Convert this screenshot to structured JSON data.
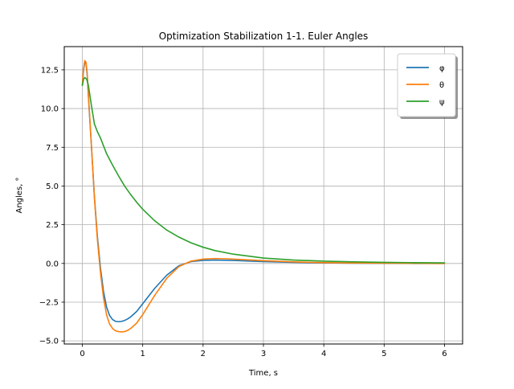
{
  "chart_data": {
    "type": "line",
    "title": "Optimization Stabilization 1-1. Euler Angles",
    "xlabel": "Time, s",
    "ylabel": "Angles, °",
    "xlim": [
      -0.3,
      6.3
    ],
    "ylim": [
      -5.2,
      14.0
    ],
    "xticks": [
      0,
      1,
      2,
      3,
      4,
      5,
      6
    ],
    "xtick_labels": [
      "0",
      "1",
      "2",
      "3",
      "4",
      "5",
      "6"
    ],
    "yticks": [
      -5.0,
      -2.5,
      0.0,
      2.5,
      5.0,
      7.5,
      10.0,
      12.5
    ],
    "ytick_labels": [
      "−5.0",
      "−2.5",
      "0.0",
      "2.5",
      "5.0",
      "7.5",
      "10.0",
      "12.5"
    ],
    "grid": true,
    "legend_position": "top-right",
    "series": [
      {
        "name": "φ",
        "color": "#1f77b4",
        "x": [
          0.0,
          0.02,
          0.04,
          0.06,
          0.08,
          0.1,
          0.15,
          0.2,
          0.25,
          0.3,
          0.35,
          0.4,
          0.45,
          0.5,
          0.55,
          0.6,
          0.65,
          0.7,
          0.75,
          0.8,
          0.9,
          1.0,
          1.2,
          1.4,
          1.6,
          1.8,
          2.0,
          2.2,
          2.4,
          2.6,
          2.8,
          3.0,
          3.5,
          4.0,
          4.5,
          5.0,
          5.5,
          6.0
        ],
        "y": [
          11.5,
          12.5,
          13.0,
          12.9,
          12.2,
          10.8,
          7.6,
          4.3,
          1.7,
          -0.3,
          -1.8,
          -2.8,
          -3.35,
          -3.62,
          -3.74,
          -3.76,
          -3.74,
          -3.68,
          -3.58,
          -3.45,
          -3.1,
          -2.6,
          -1.6,
          -0.75,
          -0.15,
          0.12,
          0.2,
          0.22,
          0.2,
          0.18,
          0.15,
          0.12,
          0.07,
          0.04,
          0.02,
          0.01,
          0.0,
          0.0
        ]
      },
      {
        "name": "θ",
        "color": "#ff7f0e",
        "x": [
          0.0,
          0.02,
          0.04,
          0.06,
          0.08,
          0.1,
          0.15,
          0.2,
          0.25,
          0.3,
          0.35,
          0.4,
          0.45,
          0.5,
          0.55,
          0.6,
          0.65,
          0.7,
          0.75,
          0.8,
          0.9,
          1.0,
          1.2,
          1.4,
          1.6,
          1.8,
          2.0,
          2.2,
          2.4,
          2.6,
          2.8,
          3.0,
          3.5,
          4.0,
          4.5,
          5.0,
          5.5,
          6.0
        ],
        "y": [
          11.5,
          12.6,
          13.1,
          13.0,
          12.3,
          10.9,
          7.6,
          4.2,
          1.5,
          -0.6,
          -2.2,
          -3.3,
          -3.9,
          -4.2,
          -4.35,
          -4.4,
          -4.42,
          -4.4,
          -4.32,
          -4.2,
          -3.85,
          -3.3,
          -2.05,
          -0.95,
          -0.2,
          0.15,
          0.28,
          0.32,
          0.3,
          0.26,
          0.22,
          0.18,
          0.1,
          0.05,
          0.03,
          0.02,
          0.01,
          0.0
        ]
      },
      {
        "name": "ψ",
        "color": "#2ca02c",
        "x": [
          0.0,
          0.02,
          0.04,
          0.06,
          0.08,
          0.1,
          0.15,
          0.2,
          0.25,
          0.3,
          0.35,
          0.4,
          0.5,
          0.6,
          0.7,
          0.8,
          0.9,
          1.0,
          1.2,
          1.4,
          1.6,
          1.8,
          2.0,
          2.2,
          2.5,
          3.0,
          3.5,
          4.0,
          4.5,
          5.0,
          5.5,
          6.0
        ],
        "y": [
          11.5,
          11.9,
          12.0,
          11.95,
          11.8,
          11.5,
          10.2,
          9.0,
          8.5,
          8.1,
          7.6,
          7.1,
          6.35,
          5.65,
          5.0,
          4.45,
          3.95,
          3.5,
          2.75,
          2.15,
          1.7,
          1.33,
          1.05,
          0.83,
          0.6,
          0.35,
          0.22,
          0.15,
          0.1,
          0.07,
          0.05,
          0.04
        ]
      }
    ]
  }
}
